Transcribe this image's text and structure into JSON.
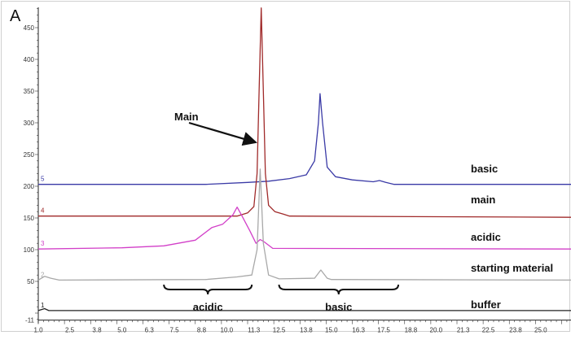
{
  "panel_label": "A",
  "chart_data": {
    "type": "line",
    "xlim": [
      1.0,
      26.6
    ],
    "ylim": [
      -11,
      482
    ],
    "x_ticks": [
      "1.0",
      "2.5",
      "3.8",
      "5.0",
      "6.3",
      "7.5",
      "8.8",
      "10.0",
      "11.3",
      "12.5",
      "13.8",
      "15.0",
      "16.3",
      "17.5",
      "18.8",
      "20.0",
      "21.3",
      "22.5",
      "23.8",
      "25.0"
    ],
    "y_ticks": [
      "-11",
      "50",
      "100",
      "150",
      "200",
      "250",
      "300",
      "350",
      "400",
      "450"
    ],
    "grid": false,
    "series": [
      {
        "name": "basic",
        "trace_no": "5",
        "color": "#3a3aa6",
        "points": [
          [
            1,
            203
          ],
          [
            9.0,
            203
          ],
          [
            11.0,
            206
          ],
          [
            12,
            208
          ],
          [
            13,
            212
          ],
          [
            13.8,
            218
          ],
          [
            14.2,
            240
          ],
          [
            14.38,
            300
          ],
          [
            14.46,
            346
          ],
          [
            14.58,
            300
          ],
          [
            14.8,
            230
          ],
          [
            15.2,
            215
          ],
          [
            16,
            210
          ],
          [
            17,
            207
          ],
          [
            17.3,
            209
          ],
          [
            17.6,
            206
          ],
          [
            18,
            203
          ],
          [
            26.6,
            203
          ]
        ]
      },
      {
        "name": "main",
        "trace_no": "4",
        "color": "#a02a2a",
        "points": [
          [
            1,
            153
          ],
          [
            10.5,
            153
          ],
          [
            11.0,
            158
          ],
          [
            11.3,
            168
          ],
          [
            11.45,
            220
          ],
          [
            11.55,
            350
          ],
          [
            11.65,
            481
          ],
          [
            11.75,
            350
          ],
          [
            11.85,
            220
          ],
          [
            12.0,
            170
          ],
          [
            12.3,
            160
          ],
          [
            12.7,
            156
          ],
          [
            13,
            153
          ],
          [
            26.6,
            151
          ]
        ]
      },
      {
        "name": "acidic",
        "trace_no": "3",
        "color": "#d23fc8",
        "points": [
          [
            1,
            101
          ],
          [
            5,
            103
          ],
          [
            7,
            106
          ],
          [
            8.5,
            115
          ],
          [
            9.3,
            135
          ],
          [
            9.8,
            140
          ],
          [
            10.3,
            155
          ],
          [
            10.5,
            167
          ],
          [
            10.7,
            155
          ],
          [
            11.1,
            130
          ],
          [
            11.4,
            110
          ],
          [
            11.6,
            116
          ],
          [
            11.8,
            112
          ],
          [
            12.2,
            102
          ],
          [
            26.6,
            101
          ]
        ]
      },
      {
        "name": "starting material",
        "trace_no": "2",
        "color": "#a8a8a8",
        "points": [
          [
            1,
            52
          ],
          [
            1.3,
            58
          ],
          [
            1.6,
            55
          ],
          [
            2,
            52
          ],
          [
            9,
            53
          ],
          [
            10.5,
            57
          ],
          [
            11.2,
            60
          ],
          [
            11.45,
            100
          ],
          [
            11.6,
            227
          ],
          [
            11.75,
            110
          ],
          [
            12,
            60
          ],
          [
            12.5,
            54
          ],
          [
            14.2,
            55
          ],
          [
            14.5,
            68
          ],
          [
            14.8,
            55
          ],
          [
            15,
            53
          ],
          [
            26.6,
            52
          ]
        ]
      },
      {
        "name": "buffer",
        "trace_no": "1",
        "color": "#222222",
        "points": [
          [
            1,
            4
          ],
          [
            1.3,
            7
          ],
          [
            1.5,
            4
          ],
          [
            26.6,
            4
          ]
        ]
      }
    ],
    "annotations": {
      "arrow_label": "Main",
      "arrow_from": [
        8.2,
        300
      ],
      "arrow_to": [
        11.3,
        270
      ],
      "braces": [
        {
          "label": "acidic",
          "from": 7.0,
          "to": 11.2
        },
        {
          "label": "basic",
          "from": 12.5,
          "to": 18.2
        }
      ]
    }
  }
}
